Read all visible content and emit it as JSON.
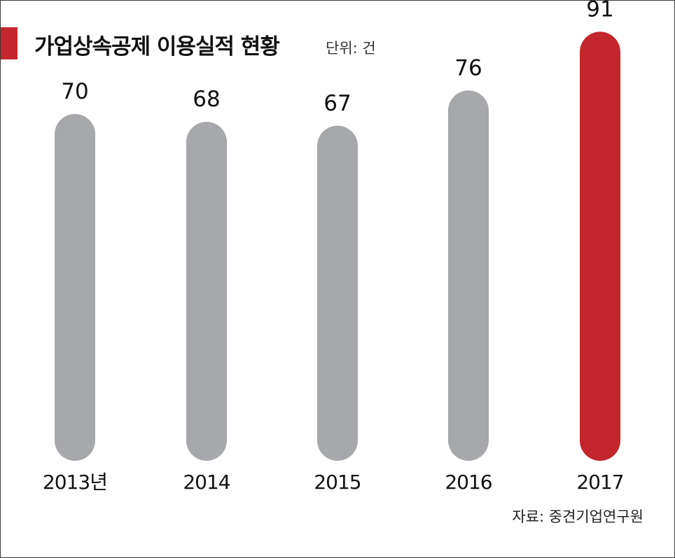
{
  "title": "가업상속공제 이용실적 현황",
  "unit_label": "단위: 건",
  "source": "자료: 중견기업연구원",
  "colors": {
    "accent": "#c4262e",
    "bar_default": "#a7a8ab",
    "bar_highlight": "#c4262e"
  },
  "chart_data": {
    "type": "bar",
    "categories": [
      "2013년",
      "2014",
      "2015",
      "2016",
      "2017"
    ],
    "values": [
      70,
      68,
      67,
      76,
      91
    ],
    "highlight_index": 4,
    "title": "가업상속공제 이용실적 현황",
    "xlabel": "",
    "ylabel": "",
    "unit": "건",
    "data_labels": true,
    "grid": false,
    "legend": "none"
  }
}
